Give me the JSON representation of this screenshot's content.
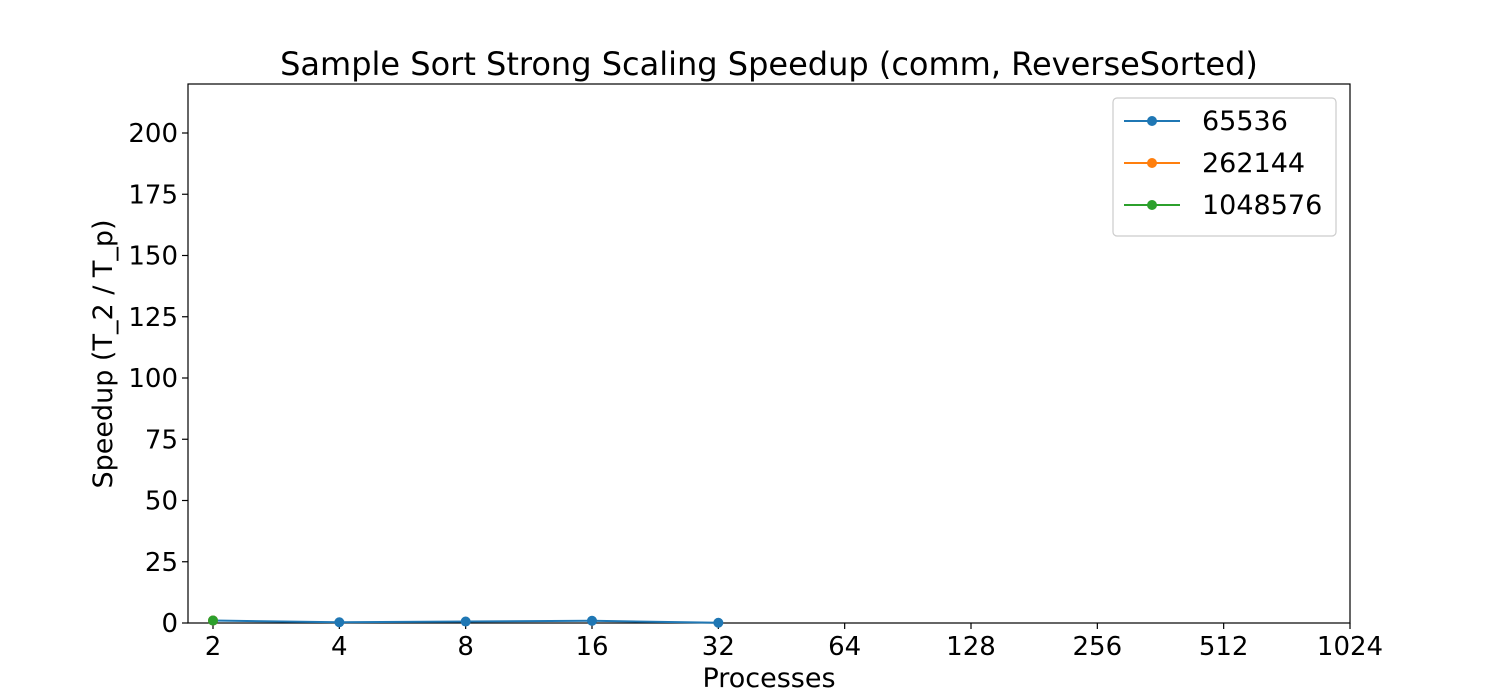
{
  "chart_data": {
    "type": "line",
    "title": "Sample Sort Strong Scaling Speedup (comm, ReverseSorted)",
    "xlabel": "Processes",
    "ylabel": "Speedup (T_2 / T_p)",
    "x_scale": "log2",
    "x_ticks": [
      2,
      4,
      8,
      16,
      32,
      64,
      128,
      256,
      512,
      1024
    ],
    "x_tick_labels": [
      "2",
      "4",
      "8",
      "16",
      "32",
      "64",
      "128",
      "256",
      "512",
      "1024"
    ],
    "xlim": [
      2,
      1024
    ],
    "y_ticks": [
      0,
      25,
      50,
      75,
      100,
      125,
      150,
      175,
      200
    ],
    "y_tick_labels": [
      "0",
      "25",
      "50",
      "75",
      "100",
      "125",
      "150",
      "175",
      "200"
    ],
    "ylim": [
      0,
      220
    ],
    "grid": false,
    "legend_position": "top-right",
    "series": [
      {
        "name": "65536",
        "color": "#1f77b4",
        "x": [
          2,
          4,
          8,
          16,
          32
        ],
        "y": [
          1.0,
          0.3,
          0.6,
          0.9,
          0.1
        ]
      },
      {
        "name": "262144",
        "color": "#ff7f0e",
        "x": [
          2
        ],
        "y": [
          1.0
        ]
      },
      {
        "name": "1048576",
        "color": "#2ca02c",
        "x": [
          2
        ],
        "y": [
          1.0
        ]
      }
    ]
  }
}
